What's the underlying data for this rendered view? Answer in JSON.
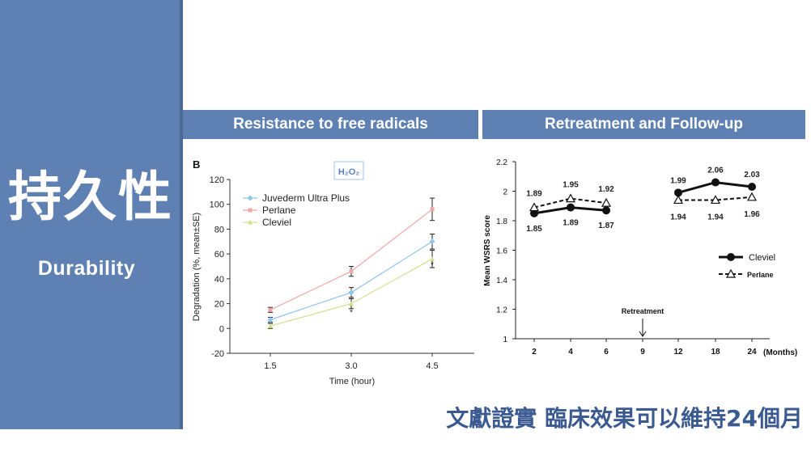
{
  "sidebar": {
    "title_cjk": "持久性",
    "subtitle": "Durability"
  },
  "banners": {
    "left": "Resistance to free radicals",
    "right": "Retreatment and Follow-up"
  },
  "footer": {
    "text": "文獻證實 臨床效果可以維持24個月"
  },
  "colors": {
    "sidebar": "#5f80b2",
    "footer_text": "#3b5a92",
    "juvederm": "#8ec5ea",
    "perlane": "#efa8a8",
    "cleviel": "#cfe08a"
  },
  "chart_data": [
    {
      "type": "line",
      "panel_label": "B",
      "annotation": "H₂O₂",
      "xlabel": "Time (hour)",
      "ylabel": "Degradation (%, mean±SE)",
      "categories": [
        "1.5",
        "3.0",
        "4.5"
      ],
      "ylim": [
        -20,
        120
      ],
      "yticks": [
        "-20",
        "0",
        "20",
        "40",
        "60",
        "80",
        "100",
        "120"
      ],
      "series": [
        {
          "name": "Juvederm Ultra Plus",
          "values": [
            7,
            29,
            70
          ]
        },
        {
          "name": "Perlane",
          "values": [
            15,
            46,
            96
          ]
        },
        {
          "name": "Cleviel",
          "values": [
            2,
            20,
            56
          ]
        }
      ],
      "significance_marks": [
        "*",
        "*"
      ],
      "legend": "top-left"
    },
    {
      "type": "line",
      "ylabel": "Mean WSRS score",
      "xlabel": "(Months)",
      "categories": [
        "2",
        "4",
        "6",
        "9",
        "12",
        "18",
        "24"
      ],
      "ylim": [
        1,
        2.2
      ],
      "yticks": [
        "1",
        "1.2",
        "1.4",
        "1.6",
        "1.8",
        "2",
        "2.2"
      ],
      "series": [
        {
          "name": "Cleviel",
          "values": [
            1.85,
            1.89,
            1.87,
            null,
            1.99,
            2.06,
            2.03
          ],
          "labels": [
            "1.85",
            "1.89",
            "1.87",
            "",
            "1.99",
            "2.06",
            "2.03"
          ]
        },
        {
          "name": "Perlane",
          "values": [
            1.89,
            1.95,
            1.92,
            null,
            1.94,
            1.94,
            1.96
          ],
          "labels": [
            "1.89",
            "1.95",
            "1.92",
            "",
            "1.94",
            "1.94",
            "1.96"
          ]
        }
      ],
      "annotation": "Retreatment",
      "annotation_at": "9",
      "legend": "right"
    }
  ]
}
